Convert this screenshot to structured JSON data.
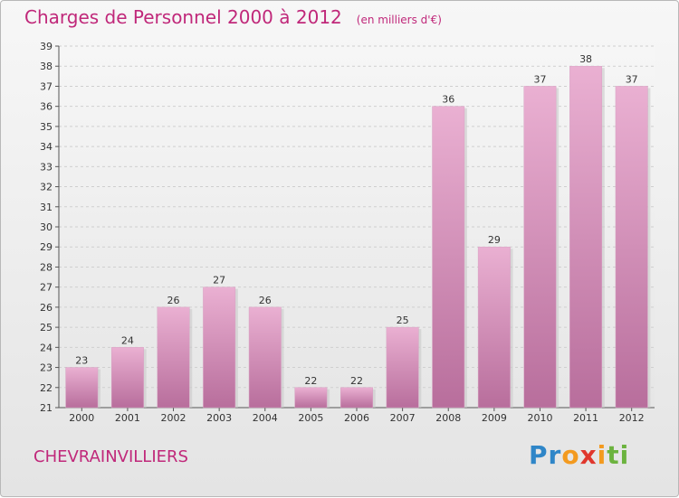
{
  "title": "Charges de Personnel 2000 à 2012",
  "subtitle": "(en milliers d'€)",
  "town": "CHEVRAINVILLIERS",
  "logo": {
    "letters": [
      "P",
      "r",
      "o",
      "x",
      "i",
      "t",
      "i"
    ],
    "colors": [
      "#2f86c8",
      "#2f86c8",
      "#f39a1f",
      "#e0372d",
      "#f39a1f",
      "#6cb33f",
      "#6cb33f"
    ]
  },
  "colors": {
    "bar": "#d98bb8",
    "accent": "#c0287a"
  },
  "chart_data": {
    "type": "bar",
    "title": "Charges de Personnel 2000 à 2012",
    "subtitle": "(en milliers d'€)",
    "categories": [
      "2000",
      "2001",
      "2002",
      "2003",
      "2004",
      "2005",
      "2006",
      "2007",
      "2008",
      "2009",
      "2010",
      "2011",
      "2012"
    ],
    "values": [
      23,
      24,
      26,
      27,
      26,
      22,
      22,
      25,
      36,
      29,
      37,
      38,
      37
    ],
    "ylim": [
      21,
      39
    ],
    "yticks": [
      21,
      22,
      23,
      24,
      25,
      26,
      27,
      28,
      29,
      30,
      31,
      32,
      33,
      34,
      35,
      36,
      37,
      38,
      39
    ],
    "grid": true
  }
}
